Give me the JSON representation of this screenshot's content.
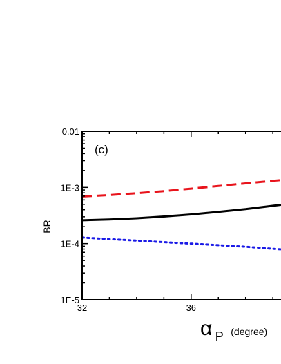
{
  "chart_data": {
    "type": "line",
    "panel_label": "(c)",
    "xlabel": {
      "symbol": "α",
      "subscript": "P",
      "unit": "(degree)"
    },
    "ylabel": "BR",
    "yscale": "log",
    "xlim": [
      32,
      39.3
    ],
    "ylim": [
      1e-05,
      0.01
    ],
    "x_ticks": [
      {
        "value": 32,
        "label": "32"
      },
      {
        "value": 36,
        "label": "36"
      }
    ],
    "y_ticks": [
      {
        "value": 0.01,
        "label": "0.01"
      },
      {
        "value": 0.001,
        "label": "1E-3"
      },
      {
        "value": 0.0001,
        "label": "1E-4"
      },
      {
        "value": 1e-05,
        "label": "1E-5"
      }
    ],
    "grid": false,
    "series": [
      {
        "style": "dashed",
        "color": "#e8141c",
        "x": [
          32,
          33,
          34,
          35,
          36,
          37,
          38,
          39.3
        ],
        "y": [
          0.00069,
          0.00073,
          0.00079,
          0.00086,
          0.00095,
          0.00106,
          0.00118,
          0.00135
        ]
      },
      {
        "style": "solid",
        "color": "#000000",
        "x": [
          32,
          33,
          34,
          35,
          36,
          37,
          38,
          39.3
        ],
        "y": [
          0.00026,
          0.000268,
          0.000282,
          0.000303,
          0.00033,
          0.000367,
          0.00041,
          0.00049
        ]
      },
      {
        "style": "dotted",
        "color": "#1a1ae6",
        "x": [
          32,
          33,
          34,
          35,
          36,
          37,
          38,
          39.3
        ],
        "y": [
          0.000128,
          0.00012,
          0.000113,
          0.000106,
          0.0001,
          9.4e-05,
          8.8e-05,
          7.9e-05
        ]
      }
    ]
  }
}
